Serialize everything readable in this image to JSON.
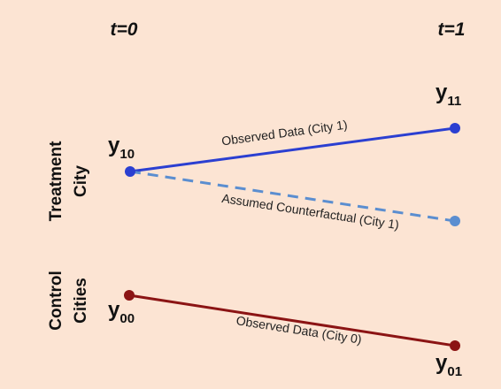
{
  "headers": [
    "t=0",
    "t=1"
  ],
  "groups": [
    {
      "lines": [
        "Treatment",
        "City"
      ]
    },
    {
      "lines": [
        "Control",
        "Cities"
      ]
    }
  ],
  "points": [
    {
      "symbol": "y",
      "subscript": "10"
    },
    {
      "symbol": "y",
      "subscript": "11"
    },
    {
      "symbol": "y",
      "subscript": "00"
    },
    {
      "symbol": "y",
      "subscript": "01"
    }
  ],
  "line_labels": [
    "Observed Data (City 1)",
    "Assumed Counterfactual (City 1)",
    "Observed Data (City 0)"
  ]
}
